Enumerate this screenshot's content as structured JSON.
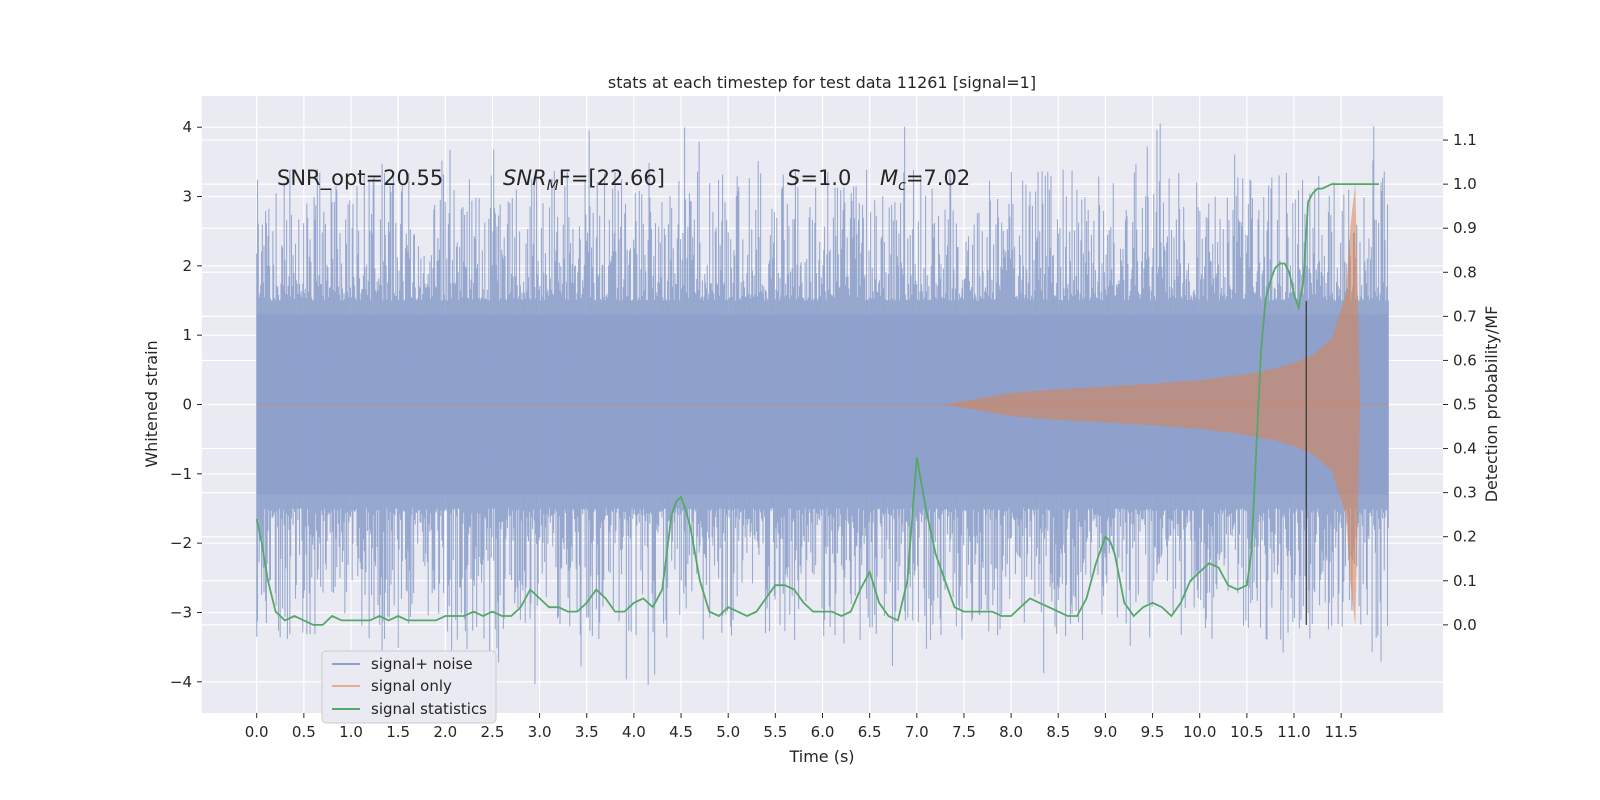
{
  "chart_data": {
    "type": "line",
    "title": "stats at each timestep for test data 11261 [signal=1]",
    "xlabel": "Time (s)",
    "ylabel": "Whitened strain",
    "y2label": "Detection probability/MF",
    "xlim": [
      -0.58,
      12.58
    ],
    "ylim": [
      -4.45,
      4.45
    ],
    "y2lim": [
      -0.2,
      1.2
    ],
    "x_ticks": [
      0.0,
      0.5,
      1.0,
      1.5,
      2.0,
      2.5,
      3.0,
      3.5,
      4.0,
      4.5,
      5.0,
      5.5,
      6.0,
      6.5,
      7.0,
      7.5,
      8.0,
      8.5,
      9.0,
      9.5,
      10.0,
      10.5,
      11.0,
      11.5
    ],
    "x_tick_labels": [
      "0.0",
      "0.5",
      "1.0",
      "1.5",
      "2.0",
      "2.5",
      "3.0",
      "3.5",
      "4.0",
      "4.5",
      "5.0",
      "5.5",
      "6.0",
      "6.5",
      "7.0",
      "7.5",
      "8.0",
      "8.5",
      "9.0",
      "9.5",
      "10.0",
      "10.5",
      "11.0",
      "11.5"
    ],
    "y_ticks": [
      -4,
      -3,
      -2,
      -1,
      0,
      1,
      2,
      3,
      4
    ],
    "y_tick_labels": [
      "−4",
      "−3",
      "−2",
      "−1",
      "0",
      "1",
      "2",
      "3",
      "4"
    ],
    "y2_ticks": [
      0.0,
      0.1,
      0.2,
      0.3,
      0.4,
      0.5,
      0.6,
      0.7,
      0.8,
      0.9,
      1.0,
      1.1
    ],
    "y2_tick_labels": [
      "0.0",
      "0.1",
      "0.2",
      "0.3",
      "0.4",
      "0.5",
      "0.6",
      "0.7",
      "0.8",
      "0.9",
      "1.0",
      "1.1"
    ],
    "grid": true,
    "legend_position": "lower-left",
    "annotations": [
      {
        "text": "SNR_opt=20.55",
        "x": 0.2,
        "y": 3.3
      },
      {
        "text_main": "SNR",
        "text_sub": "M",
        "text_rest": "F=[22.66]",
        "x": 2.62,
        "y": 3.3
      },
      {
        "text_main": "S",
        "text_rest": "=1.0",
        "x": 5.62,
        "y": 3.3
      },
      {
        "text_main": "M",
        "text_sub": "c",
        "text_rest": "=7.02",
        "x": 6.62,
        "y": 3.3
      }
    ],
    "vline_x": 11.13,
    "series": [
      {
        "name": "signal+ noise",
        "color": "#8da0cb",
        "kind": "noise-band",
        "x_range": [
          0.0,
          12.0
        ],
        "core_amplitude": 1.3,
        "spike_amplitude_typical": 2.5,
        "spike_max": 4.1,
        "spike_min": -4.05
      },
      {
        "name": "signal only",
        "color": "#dd8452",
        "kind": "chirp-envelope",
        "x": [
          7.3,
          8.0,
          8.5,
          9.0,
          9.5,
          10.0,
          10.5,
          10.8,
          11.0,
          11.2,
          11.4,
          11.55,
          11.6,
          11.65,
          11.7
        ],
        "amplitude": [
          0.0,
          0.17,
          0.22,
          0.26,
          0.3,
          0.35,
          0.44,
          0.52,
          0.6,
          0.72,
          0.95,
          1.6,
          2.6,
          3.2,
          0.05
        ]
      },
      {
        "name": "signal statistics",
        "color": "#55a868",
        "axis": "right",
        "x": [
          0.0,
          0.05,
          0.12,
          0.2,
          0.3,
          0.4,
          0.5,
          0.6,
          0.7,
          0.8,
          0.9,
          1.0,
          1.1,
          1.2,
          1.3,
          1.4,
          1.5,
          1.6,
          1.7,
          1.8,
          1.9,
          2.0,
          2.1,
          2.2,
          2.3,
          2.4,
          2.5,
          2.6,
          2.7,
          2.8,
          2.9,
          3.0,
          3.1,
          3.2,
          3.3,
          3.4,
          3.5,
          3.6,
          3.7,
          3.8,
          3.9,
          4.0,
          4.1,
          4.2,
          4.3,
          4.4,
          4.45,
          4.5,
          4.55,
          4.6,
          4.7,
          4.8,
          4.9,
          5.0,
          5.1,
          5.2,
          5.3,
          5.4,
          5.5,
          5.6,
          5.7,
          5.8,
          5.9,
          6.0,
          6.1,
          6.2,
          6.3,
          6.4,
          6.5,
          6.6,
          6.7,
          6.8,
          6.9,
          7.0,
          7.05,
          7.1,
          7.2,
          7.3,
          7.4,
          7.5,
          7.6,
          7.7,
          7.8,
          7.9,
          8.0,
          8.1,
          8.2,
          8.3,
          8.4,
          8.5,
          8.6,
          8.7,
          8.8,
          8.9,
          9.0,
          9.05,
          9.1,
          9.2,
          9.3,
          9.4,
          9.5,
          9.6,
          9.7,
          9.8,
          9.9,
          10.0,
          10.1,
          10.2,
          10.3,
          10.4,
          10.5,
          10.55,
          10.6,
          10.65,
          10.7,
          10.75,
          10.8,
          10.85,
          10.9,
          10.95,
          11.0,
          11.05,
          11.1,
          11.15,
          11.2,
          11.25,
          11.3,
          11.4,
          11.5,
          11.6,
          11.7,
          11.8,
          11.9
        ],
        "y": [
          0.24,
          0.19,
          0.1,
          0.03,
          0.01,
          0.02,
          0.01,
          0.0,
          0.0,
          0.02,
          0.01,
          0.01,
          0.01,
          0.01,
          0.02,
          0.01,
          0.02,
          0.01,
          0.01,
          0.01,
          0.01,
          0.02,
          0.02,
          0.02,
          0.03,
          0.02,
          0.03,
          0.02,
          0.02,
          0.04,
          0.08,
          0.06,
          0.04,
          0.04,
          0.03,
          0.03,
          0.05,
          0.08,
          0.06,
          0.03,
          0.03,
          0.05,
          0.06,
          0.04,
          0.08,
          0.25,
          0.28,
          0.29,
          0.26,
          0.22,
          0.1,
          0.03,
          0.02,
          0.04,
          0.03,
          0.02,
          0.03,
          0.06,
          0.09,
          0.09,
          0.08,
          0.05,
          0.03,
          0.03,
          0.03,
          0.02,
          0.03,
          0.08,
          0.12,
          0.05,
          0.02,
          0.01,
          0.1,
          0.38,
          0.32,
          0.26,
          0.16,
          0.1,
          0.04,
          0.03,
          0.03,
          0.03,
          0.03,
          0.02,
          0.02,
          0.04,
          0.06,
          0.05,
          0.04,
          0.03,
          0.02,
          0.02,
          0.06,
          0.14,
          0.2,
          0.19,
          0.16,
          0.05,
          0.02,
          0.04,
          0.05,
          0.04,
          0.02,
          0.05,
          0.1,
          0.12,
          0.14,
          0.13,
          0.09,
          0.08,
          0.09,
          0.17,
          0.4,
          0.62,
          0.74,
          0.78,
          0.81,
          0.82,
          0.82,
          0.8,
          0.75,
          0.72,
          0.78,
          0.96,
          0.98,
          0.99,
          0.99,
          1.0,
          1.0,
          1.0,
          1.0,
          1.0,
          1.0
        ]
      }
    ]
  }
}
